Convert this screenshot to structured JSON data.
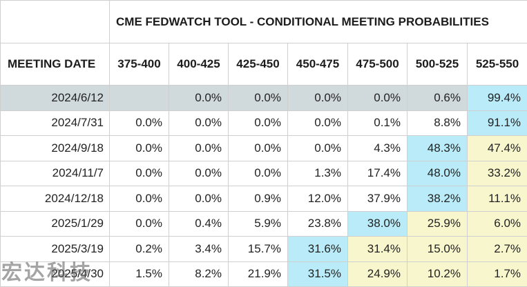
{
  "title": "CME FEDWATCH TOOL - CONDITIONAL MEETING PROBABILITIES",
  "meeting_date_label": "MEETING DATE",
  "columns": [
    "375-400",
    "400-425",
    "425-450",
    "450-475",
    "475-500",
    "500-525",
    "525-550"
  ],
  "rows": [
    {
      "date": "2024/6/12",
      "values": [
        "",
        "0.0%",
        "0.0%",
        "0.0%",
        "0.0%",
        "0.6%",
        "99.4%"
      ]
    },
    {
      "date": "2024/7/31",
      "values": [
        "0.0%",
        "0.0%",
        "0.0%",
        "0.0%",
        "0.1%",
        "8.8%",
        "91.1%"
      ]
    },
    {
      "date": "2024/9/18",
      "values": [
        "0.0%",
        "0.0%",
        "0.0%",
        "0.0%",
        "4.3%",
        "48.3%",
        "47.4%"
      ]
    },
    {
      "date": "2024/11/7",
      "values": [
        "0.0%",
        "0.0%",
        "0.0%",
        "1.3%",
        "17.4%",
        "48.0%",
        "33.2%"
      ]
    },
    {
      "date": "2024/12/18",
      "values": [
        "0.0%",
        "0.0%",
        "0.9%",
        "12.0%",
        "37.9%",
        "38.2%",
        "11.1%"
      ]
    },
    {
      "date": "2025/1/29",
      "values": [
        "0.0%",
        "0.4%",
        "5.9%",
        "23.8%",
        "38.0%",
        "25.9%",
        "6.0%"
      ]
    },
    {
      "date": "2025/3/19",
      "values": [
        "0.2%",
        "3.4%",
        "15.7%",
        "31.6%",
        "31.4%",
        "15.0%",
        "2.7%"
      ]
    },
    {
      "date": "2025/4/30",
      "values": [
        "1.5%",
        "8.2%",
        "21.9%",
        "31.5%",
        "24.9%",
        "10.2%",
        "1.7%"
      ]
    }
  ],
  "highlights": {
    "cyan": [
      [
        0,
        6
      ],
      [
        1,
        6
      ],
      [
        2,
        5
      ],
      [
        3,
        5
      ],
      [
        4,
        5
      ],
      [
        5,
        4
      ],
      [
        6,
        3
      ],
      [
        7,
        3
      ]
    ],
    "yellow": [
      [
        2,
        6
      ],
      [
        3,
        6
      ],
      [
        4,
        6
      ],
      [
        5,
        5
      ],
      [
        5,
        6
      ],
      [
        6,
        4
      ],
      [
        6,
        5
      ],
      [
        6,
        6
      ],
      [
        7,
        4
      ],
      [
        7,
        5
      ],
      [
        7,
        6
      ]
    ]
  },
  "colors": {
    "current_row_bg": "#d0d9dc",
    "highlight_cyan": "#b9ecf8",
    "highlight_yellow": "#f8f6cc",
    "border": "#cfcfcf"
  },
  "watermark": "宏达科技"
}
